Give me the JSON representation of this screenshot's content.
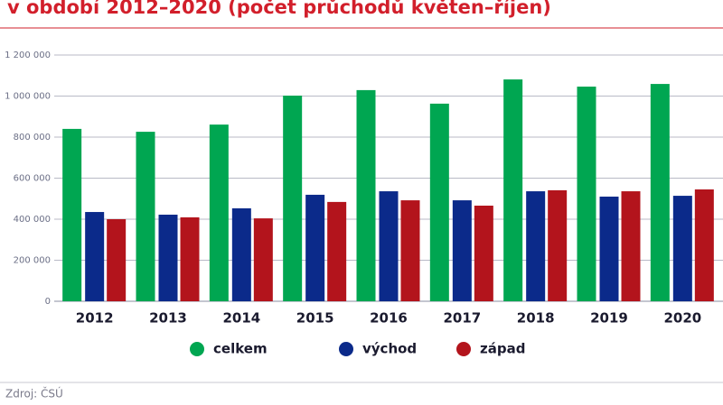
{
  "chart_data": {
    "type": "bar",
    "title": "v období 2012–2020 (počet průchodů květen–říjen)",
    "source": "Zdroj: ČSÚ",
    "categories": [
      "2012",
      "2013",
      "2014",
      "2015",
      "2016",
      "2017",
      "2018",
      "2019",
      "2020"
    ],
    "series": [
      {
        "name": "celkem",
        "color": "#00a651",
        "values": [
          840000,
          826000,
          861000,
          1002000,
          1029000,
          963000,
          1081000,
          1046000,
          1059000
        ]
      },
      {
        "name": "východ",
        "color": "#0b2a8a",
        "values": [
          435000,
          422000,
          453000,
          519000,
          536000,
          492000,
          536000,
          510000,
          514000
        ]
      },
      {
        "name": "západ",
        "color": "#b3141c",
        "values": [
          400000,
          409000,
          404000,
          484000,
          492000,
          466000,
          541000,
          536000,
          545000
        ]
      }
    ],
    "ylim": [
      0,
      1200000
    ],
    "yticks": [
      0,
      {
        "value": 200000,
        "label": "200 000"
      },
      {
        "value": 400000,
        "label": "400 000"
      },
      {
        "value": 600000,
        "label": "600 000"
      },
      {
        "value": 800000,
        "label": "800 000"
      },
      {
        "value": 1000000,
        "label": "1 000 000"
      },
      {
        "value": 1200000,
        "label": "1 200 000"
      }
    ],
    "grid": true
  }
}
